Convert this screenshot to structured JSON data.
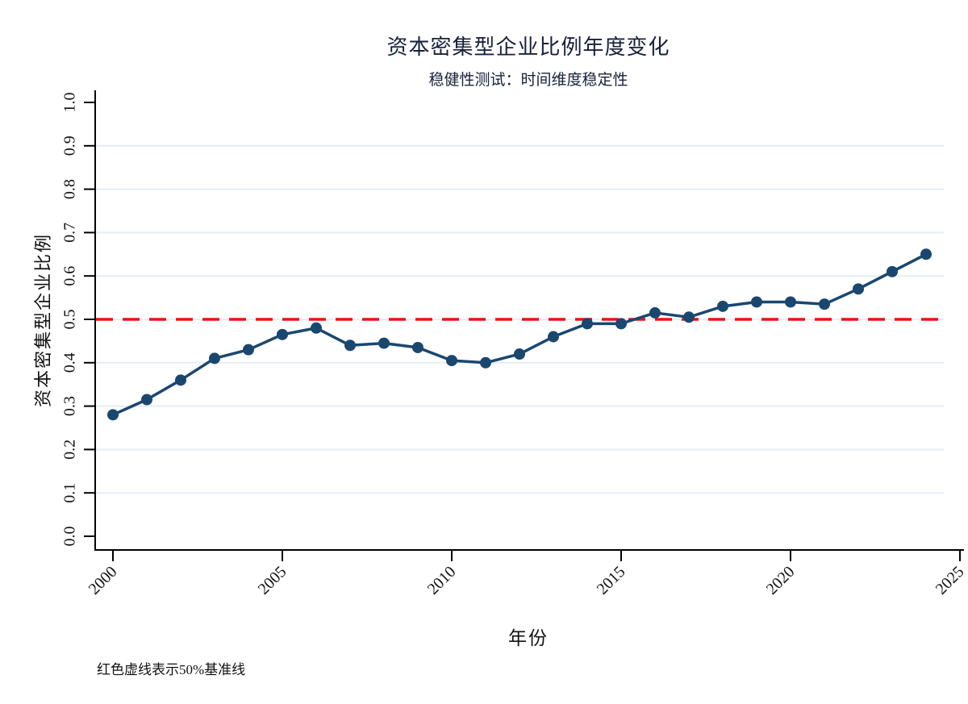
{
  "chart_data": {
    "type": "line",
    "title": "资本密集型企业比例年度变化",
    "subtitle": "稳健性测试：时间维度稳定性",
    "xlabel": "年份",
    "ylabel": "资本密集型企业比例",
    "note": "红色虚线表示50%基准线",
    "x": [
      2000,
      2001,
      2002,
      2003,
      2004,
      2005,
      2006,
      2007,
      2008,
      2009,
      2010,
      2011,
      2012,
      2013,
      2014,
      2015,
      2016,
      2017,
      2018,
      2019,
      2020,
      2021,
      2022,
      2023,
      2024
    ],
    "series": [
      {
        "name": "资本密集型企业比例",
        "values": [
          0.28,
          0.315,
          0.36,
          0.41,
          0.43,
          0.465,
          0.48,
          0.44,
          0.445,
          0.435,
          0.405,
          0.4,
          0.42,
          0.46,
          0.49,
          0.49,
          0.515,
          0.505,
          0.53,
          0.54,
          0.54,
          0.535,
          0.57,
          0.61,
          0.65
        ]
      }
    ],
    "xlim": [
      1999.5,
      2025.1
    ],
    "ylim": [
      0.0,
      1.0
    ],
    "xticks": [
      2000,
      2005,
      2010,
      2015,
      2020,
      2025
    ],
    "xticklabels": [
      "2000",
      "2005",
      "2010",
      "2015",
      "2020",
      "2025"
    ],
    "yticks": [
      0.0,
      0.1,
      0.2,
      0.3,
      0.4,
      0.5,
      0.6,
      0.7,
      0.8,
      0.9,
      1.0
    ],
    "yticklabels": [
      "0.0",
      "0.1",
      "0.2",
      "0.3",
      "0.4",
      "0.5",
      "0.6",
      "0.7",
      "0.8",
      "0.9",
      "1.0"
    ],
    "grid": "horizontal-light",
    "grid_values": [
      0.1,
      0.2,
      0.3,
      0.4,
      0.5,
      0.6,
      0.7,
      0.8,
      0.9
    ],
    "tick_label_rotation": {
      "x": 45,
      "y": 90
    },
    "reference_line": {
      "value": 0.5,
      "style": "dashed",
      "meaning": "50%基准线"
    },
    "legend": "none"
  },
  "colors": {
    "series_line": "#1a476f",
    "marker": "#1a476f",
    "reference_red": "#ee1111",
    "gridline": "#e4eef6",
    "axis": "#000000",
    "background": "#ffffff"
  }
}
